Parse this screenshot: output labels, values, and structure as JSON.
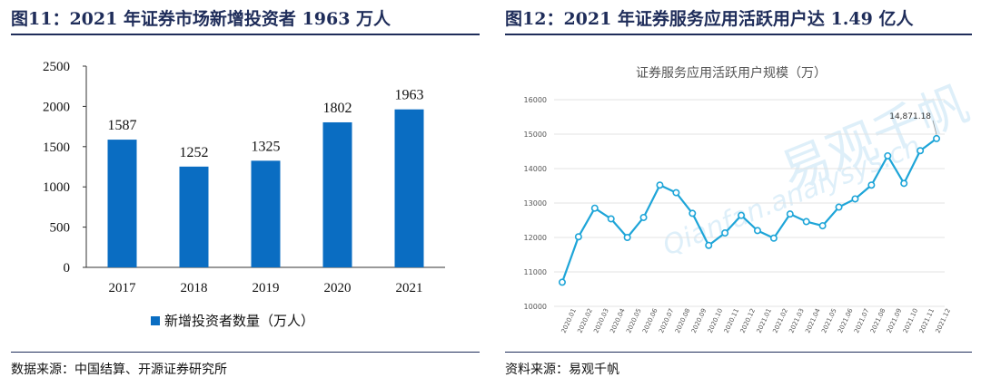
{
  "left": {
    "figure_title": "图11：2021 年证券市场新增投资者 1963 万人",
    "source": "数据来源：中国结算、开源证券研究所",
    "chart_data": {
      "type": "bar",
      "categories": [
        "2017",
        "2018",
        "2019",
        "2020",
        "2021"
      ],
      "values": [
        1587,
        1252,
        1325,
        1802,
        1963
      ],
      "data_labels": [
        "1587",
        "1252",
        "1325",
        "1802",
        "1963"
      ],
      "ylim": [
        0,
        2500
      ],
      "yticks": [
        "0",
        "500",
        "1000",
        "1500",
        "2000",
        "2500"
      ],
      "legend": "新增投资者数量（万人）",
      "legend_position": "bottom",
      "color": "#0a6dc2"
    }
  },
  "right": {
    "figure_title": "图12：2021 年证券服务应用活跃用户达 1.49 亿人",
    "source": "资料来源：易观千帆",
    "watermark": "易观千帆",
    "watermark_sub": "Qianfan.analysys.cn",
    "chart_data": {
      "type": "line",
      "title": "证券服务应用活跃用户规模（万）",
      "categories": [
        "2020.01",
        "2020.02",
        "2020.03",
        "2020.04",
        "2020.05",
        "2020.06",
        "2020.07",
        "2020.08",
        "2020.09",
        "2020.10",
        "2020.11",
        "2020.12",
        "2021.01",
        "2021.02",
        "2021.03",
        "2021.04",
        "2021.05",
        "2021.06",
        "2021.07",
        "2021.08",
        "2021.09",
        "2021.10",
        "2021.11",
        "2021.12"
      ],
      "values": [
        10700,
        12020,
        12850,
        12540,
        12000,
        12580,
        13520,
        13300,
        12700,
        11770,
        12130,
        12640,
        12200,
        11980,
        12680,
        12460,
        12340,
        12880,
        13120,
        13520,
        14370,
        13570,
        14520,
        14871
      ],
      "ylim": [
        10000,
        16000
      ],
      "yticks": [
        "10000",
        "11000",
        "12000",
        "13000",
        "14000",
        "15000",
        "16000"
      ],
      "annotation": "14,871.18",
      "grid": "horizontal",
      "color": "#1ea5d8"
    }
  }
}
